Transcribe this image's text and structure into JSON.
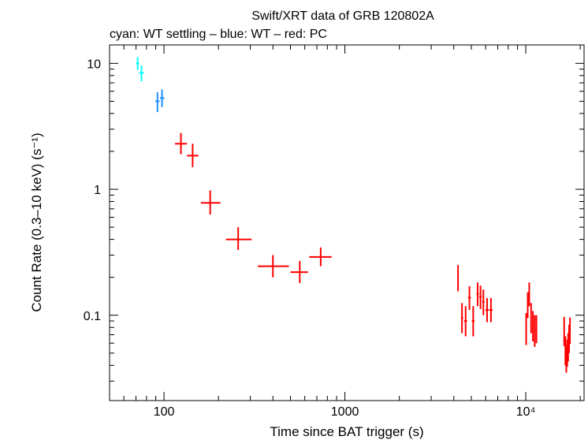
{
  "chart_data": {
    "type": "scatter",
    "title": "Swift/XRT data of GRB 120802A",
    "subtitle": "cyan: WT settling – blue: WT – red: PC",
    "xlabel": "Time since BAT trigger (s)",
    "ylabel": "Count Rate (0.3–10 keV) (s⁻¹)",
    "xscale": "log",
    "yscale": "log",
    "xlim": [
      50,
      21000
    ],
    "ylim": [
      0.021,
      14
    ],
    "x_ticks": [
      {
        "value": 100,
        "label": "100"
      },
      {
        "value": 1000,
        "label": "1000"
      },
      {
        "value": 10000,
        "label": "10⁴"
      }
    ],
    "y_ticks": [
      {
        "value": 0.1,
        "label": "0.1"
      },
      {
        "value": 1,
        "label": "1"
      },
      {
        "value": 10,
        "label": "10"
      }
    ],
    "colors": {
      "wt_settling": "#00ffff",
      "wt": "#1e90ff",
      "pc": "#ff0000"
    },
    "series": [
      {
        "mode": "wt_settling",
        "points": [
          {
            "x": 71.5,
            "xlo": 70.3,
            "xhi": 72.8,
            "y": 10.0,
            "ylo": 8.9,
            "yhi": 11.2
          },
          {
            "x": 75.0,
            "xlo": 72.8,
            "xhi": 77.5,
            "y": 8.4,
            "ylo": 7.2,
            "yhi": 9.6
          }
        ]
      },
      {
        "mode": "wt",
        "points": [
          {
            "x": 92.0,
            "xlo": 89.5,
            "xhi": 94.5,
            "y": 5.0,
            "ylo": 4.1,
            "yhi": 5.9
          },
          {
            "x": 97.5,
            "xlo": 95.0,
            "xhi": 100.5,
            "y": 5.3,
            "ylo": 4.5,
            "yhi": 6.2
          }
        ]
      },
      {
        "mode": "pc",
        "points": [
          {
            "x": 124,
            "xlo": 115,
            "xhi": 134,
            "y": 2.3,
            "ylo": 1.9,
            "yhi": 2.8
          },
          {
            "x": 144,
            "xlo": 134,
            "xhi": 155,
            "y": 1.85,
            "ylo": 1.5,
            "yhi": 2.3
          },
          {
            "x": 180,
            "xlo": 160,
            "xhi": 205,
            "y": 0.78,
            "ylo": 0.63,
            "yhi": 0.98
          },
          {
            "x": 257,
            "xlo": 220,
            "xhi": 305,
            "y": 0.4,
            "ylo": 0.33,
            "yhi": 0.5
          },
          {
            "x": 400,
            "xlo": 330,
            "xhi": 490,
            "y": 0.245,
            "ylo": 0.2,
            "yhi": 0.3
          },
          {
            "x": 563,
            "xlo": 500,
            "xhi": 625,
            "y": 0.22,
            "ylo": 0.18,
            "yhi": 0.27
          },
          {
            "x": 735,
            "xlo": 635,
            "xhi": 845,
            "y": 0.29,
            "ylo": 0.245,
            "yhi": 0.345
          },
          {
            "x": 4220,
            "xlo": 4180,
            "xhi": 4260,
            "y": 0.2,
            "ylo": 0.155,
            "yhi": 0.25
          },
          {
            "x": 4440,
            "xlo": 4380,
            "xhi": 4510,
            "y": 0.095,
            "ylo": 0.072,
            "yhi": 0.125
          },
          {
            "x": 4650,
            "xlo": 4560,
            "xhi": 4740,
            "y": 0.09,
            "ylo": 0.068,
            "yhi": 0.118
          },
          {
            "x": 4880,
            "xlo": 4790,
            "xhi": 4970,
            "y": 0.138,
            "ylo": 0.11,
            "yhi": 0.17
          },
          {
            "x": 5120,
            "xlo": 5030,
            "xhi": 5210,
            "y": 0.09,
            "ylo": 0.068,
            "yhi": 0.118
          },
          {
            "x": 5420,
            "xlo": 5330,
            "xhi": 5510,
            "y": 0.148,
            "ylo": 0.118,
            "yhi": 0.182
          },
          {
            "x": 5620,
            "xlo": 5530,
            "xhi": 5710,
            "y": 0.14,
            "ylo": 0.112,
            "yhi": 0.172
          },
          {
            "x": 5830,
            "xlo": 5740,
            "xhi": 5920,
            "y": 0.128,
            "ylo": 0.1,
            "yhi": 0.16
          },
          {
            "x": 6110,
            "xlo": 5980,
            "xhi": 6240,
            "y": 0.11,
            "ylo": 0.088,
            "yhi": 0.137
          },
          {
            "x": 6420,
            "xlo": 6280,
            "xhi": 6560,
            "y": 0.11,
            "ylo": 0.088,
            "yhi": 0.137
          },
          {
            "x": 10050,
            "xlo": 9990,
            "xhi": 10110,
            "y": 0.078,
            "ylo": 0.058,
            "yhi": 0.104
          },
          {
            "x": 10250,
            "xlo": 10180,
            "xhi": 10320,
            "y": 0.12,
            "ylo": 0.095,
            "yhi": 0.152
          },
          {
            "x": 10450,
            "xlo": 10380,
            "xhi": 10520,
            "y": 0.148,
            "ylo": 0.118,
            "yhi": 0.182
          },
          {
            "x": 10700,
            "xlo": 10620,
            "xhi": 10780,
            "y": 0.095,
            "ylo": 0.072,
            "yhi": 0.125
          },
          {
            "x": 10950,
            "xlo": 10860,
            "xhi": 11040,
            "y": 0.082,
            "ylo": 0.062,
            "yhi": 0.108
          },
          {
            "x": 11200,
            "xlo": 11110,
            "xhi": 11290,
            "y": 0.075,
            "ylo": 0.056,
            "yhi": 0.1
          },
          {
            "x": 11450,
            "xlo": 11330,
            "xhi": 11570,
            "y": 0.078,
            "ylo": 0.06,
            "yhi": 0.1
          },
          {
            "x": 16300,
            "xlo": 16200,
            "xhi": 16400,
            "y": 0.075,
            "ylo": 0.057,
            "yhi": 0.097
          },
          {
            "x": 16550,
            "xlo": 16470,
            "xhi": 16630,
            "y": 0.052,
            "ylo": 0.04,
            "yhi": 0.068
          },
          {
            "x": 16750,
            "xlo": 16670,
            "xhi": 16830,
            "y": 0.045,
            "ylo": 0.035,
            "yhi": 0.058
          },
          {
            "x": 16950,
            "xlo": 16870,
            "xhi": 17030,
            "y": 0.05,
            "ylo": 0.039,
            "yhi": 0.064
          },
          {
            "x": 17150,
            "xlo": 17070,
            "xhi": 17230,
            "y": 0.056,
            "ylo": 0.043,
            "yhi": 0.072
          },
          {
            "x": 17350,
            "xlo": 17270,
            "xhi": 17430,
            "y": 0.065,
            "ylo": 0.05,
            "yhi": 0.084
          },
          {
            "x": 17550,
            "xlo": 17460,
            "xhi": 17640,
            "y": 0.076,
            "ylo": 0.059,
            "yhi": 0.096
          }
        ]
      }
    ]
  }
}
